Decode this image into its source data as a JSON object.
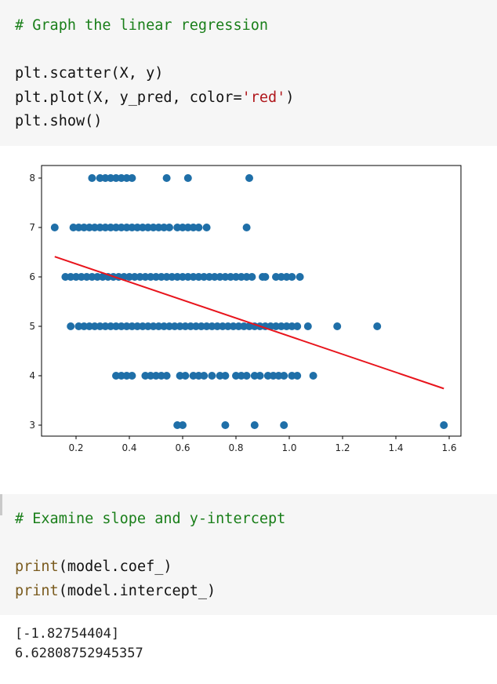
{
  "cell1": {
    "comment": "# Graph the linear regression",
    "line1": "plt.scatter(X, y)",
    "line2_pre": "plt.plot(X, y_pred, color=",
    "line2_str": "'red'",
    "line2_post": ")",
    "line3": "plt.show()"
  },
  "cell2": {
    "comment": "# Examine slope and y-intercept",
    "line1_fn": "print",
    "line1_rest": "(model.coef_)",
    "line2_fn": "print",
    "line2_rest": "(model.intercept_)"
  },
  "output": {
    "line1": "[-1.82754404]",
    "line2": "6.62808752945357"
  },
  "colors": {
    "points": "#1f6fa8",
    "line": "#e8141c",
    "comment": "#1a7f1a",
    "string": "#b0171c",
    "builtin": "#7a5b1e"
  },
  "chart_data": {
    "type": "scatter",
    "xlim": [
      0.1,
      1.6
    ],
    "ylim": [
      3,
      8
    ],
    "xticks": [
      "0.2",
      "0.4",
      "0.6",
      "0.8",
      "1.0",
      "1.2",
      "1.4",
      "1.6"
    ],
    "yticks": [
      "3",
      "4",
      "5",
      "6",
      "7",
      "8"
    ],
    "grid": false,
    "series": [
      {
        "kind": "scatter",
        "points": [
          [
            0.26,
            8
          ],
          [
            0.29,
            8
          ],
          [
            0.31,
            8
          ],
          [
            0.33,
            8
          ],
          [
            0.35,
            8
          ],
          [
            0.37,
            8
          ],
          [
            0.39,
            8
          ],
          [
            0.41,
            8
          ],
          [
            0.54,
            8
          ],
          [
            0.62,
            8
          ],
          [
            0.85,
            8
          ],
          [
            0.12,
            7
          ],
          [
            0.19,
            7
          ],
          [
            0.21,
            7
          ],
          [
            0.23,
            7
          ],
          [
            0.25,
            7
          ],
          [
            0.27,
            7
          ],
          [
            0.29,
            7
          ],
          [
            0.31,
            7
          ],
          [
            0.33,
            7
          ],
          [
            0.35,
            7
          ],
          [
            0.37,
            7
          ],
          [
            0.39,
            7
          ],
          [
            0.41,
            7
          ],
          [
            0.43,
            7
          ],
          [
            0.45,
            7
          ],
          [
            0.47,
            7
          ],
          [
            0.49,
            7
          ],
          [
            0.51,
            7
          ],
          [
            0.53,
            7
          ],
          [
            0.55,
            7
          ],
          [
            0.58,
            7
          ],
          [
            0.6,
            7
          ],
          [
            0.62,
            7
          ],
          [
            0.64,
            7
          ],
          [
            0.66,
            7
          ],
          [
            0.69,
            7
          ],
          [
            0.84,
            7
          ],
          [
            0.16,
            6
          ],
          [
            0.18,
            6
          ],
          [
            0.2,
            6
          ],
          [
            0.22,
            6
          ],
          [
            0.24,
            6
          ],
          [
            0.26,
            6
          ],
          [
            0.28,
            6
          ],
          [
            0.3,
            6
          ],
          [
            0.32,
            6
          ],
          [
            0.34,
            6
          ],
          [
            0.36,
            6
          ],
          [
            0.38,
            6
          ],
          [
            0.4,
            6
          ],
          [
            0.42,
            6
          ],
          [
            0.44,
            6
          ],
          [
            0.46,
            6
          ],
          [
            0.48,
            6
          ],
          [
            0.5,
            6
          ],
          [
            0.52,
            6
          ],
          [
            0.54,
            6
          ],
          [
            0.56,
            6
          ],
          [
            0.58,
            6
          ],
          [
            0.6,
            6
          ],
          [
            0.62,
            6
          ],
          [
            0.64,
            6
          ],
          [
            0.66,
            6
          ],
          [
            0.68,
            6
          ],
          [
            0.7,
            6
          ],
          [
            0.72,
            6
          ],
          [
            0.74,
            6
          ],
          [
            0.76,
            6
          ],
          [
            0.78,
            6
          ],
          [
            0.8,
            6
          ],
          [
            0.82,
            6
          ],
          [
            0.84,
            6
          ],
          [
            0.86,
            6
          ],
          [
            0.9,
            6
          ],
          [
            0.91,
            6
          ],
          [
            0.95,
            6
          ],
          [
            0.97,
            6
          ],
          [
            0.99,
            6
          ],
          [
            1.01,
            6
          ],
          [
            1.04,
            6
          ],
          [
            0.18,
            5
          ],
          [
            0.21,
            5
          ],
          [
            0.23,
            5
          ],
          [
            0.25,
            5
          ],
          [
            0.27,
            5
          ],
          [
            0.29,
            5
          ],
          [
            0.31,
            5
          ],
          [
            0.33,
            5
          ],
          [
            0.35,
            5
          ],
          [
            0.37,
            5
          ],
          [
            0.39,
            5
          ],
          [
            0.41,
            5
          ],
          [
            0.43,
            5
          ],
          [
            0.45,
            5
          ],
          [
            0.47,
            5
          ],
          [
            0.49,
            5
          ],
          [
            0.51,
            5
          ],
          [
            0.53,
            5
          ],
          [
            0.55,
            5
          ],
          [
            0.57,
            5
          ],
          [
            0.59,
            5
          ],
          [
            0.61,
            5
          ],
          [
            0.63,
            5
          ],
          [
            0.65,
            5
          ],
          [
            0.67,
            5
          ],
          [
            0.69,
            5
          ],
          [
            0.71,
            5
          ],
          [
            0.73,
            5
          ],
          [
            0.75,
            5
          ],
          [
            0.77,
            5
          ],
          [
            0.79,
            5
          ],
          [
            0.81,
            5
          ],
          [
            0.83,
            5
          ],
          [
            0.85,
            5
          ],
          [
            0.87,
            5
          ],
          [
            0.89,
            5
          ],
          [
            0.91,
            5
          ],
          [
            0.93,
            5
          ],
          [
            0.95,
            5
          ],
          [
            0.97,
            5
          ],
          [
            0.99,
            5
          ],
          [
            1.01,
            5
          ],
          [
            1.03,
            5
          ],
          [
            1.07,
            5
          ],
          [
            1.18,
            5
          ],
          [
            1.33,
            5
          ],
          [
            0.35,
            4
          ],
          [
            0.37,
            4
          ],
          [
            0.39,
            4
          ],
          [
            0.41,
            4
          ],
          [
            0.46,
            4
          ],
          [
            0.48,
            4
          ],
          [
            0.5,
            4
          ],
          [
            0.52,
            4
          ],
          [
            0.54,
            4
          ],
          [
            0.59,
            4
          ],
          [
            0.61,
            4
          ],
          [
            0.64,
            4
          ],
          [
            0.66,
            4
          ],
          [
            0.68,
            4
          ],
          [
            0.71,
            4
          ],
          [
            0.74,
            4
          ],
          [
            0.76,
            4
          ],
          [
            0.8,
            4
          ],
          [
            0.82,
            4
          ],
          [
            0.84,
            4
          ],
          [
            0.87,
            4
          ],
          [
            0.89,
            4
          ],
          [
            0.92,
            4
          ],
          [
            0.94,
            4
          ],
          [
            0.96,
            4
          ],
          [
            0.98,
            4
          ],
          [
            1.01,
            4
          ],
          [
            1.03,
            4
          ],
          [
            1.09,
            4
          ],
          [
            0.58,
            3
          ],
          [
            0.6,
            3
          ],
          [
            0.76,
            3
          ],
          [
            0.87,
            3
          ],
          [
            0.98,
            3
          ],
          [
            1.58,
            3
          ]
        ]
      },
      {
        "kind": "line",
        "points": [
          [
            0.12,
            6.41
          ],
          [
            1.58,
            3.74
          ]
        ]
      }
    ]
  }
}
